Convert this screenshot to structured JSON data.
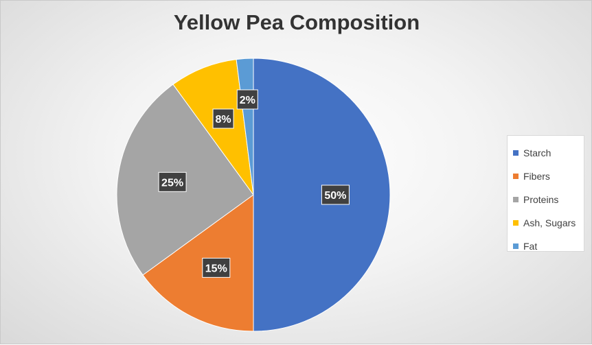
{
  "chart_data": {
    "type": "pie",
    "title": "Yellow Pea Composition",
    "categories": [
      "Starch",
      "Fibers",
      "Proteins",
      "Ash, Sugars",
      "Fat"
    ],
    "values": [
      50,
      15,
      25,
      8,
      2
    ],
    "data_labels": [
      "50%",
      "15%",
      "25%",
      "8%",
      "2%"
    ],
    "colors": [
      "#4472C4",
      "#ED7D31",
      "#A5A5A5",
      "#FFC000",
      "#5B9BD5"
    ],
    "legend_position": "right"
  }
}
